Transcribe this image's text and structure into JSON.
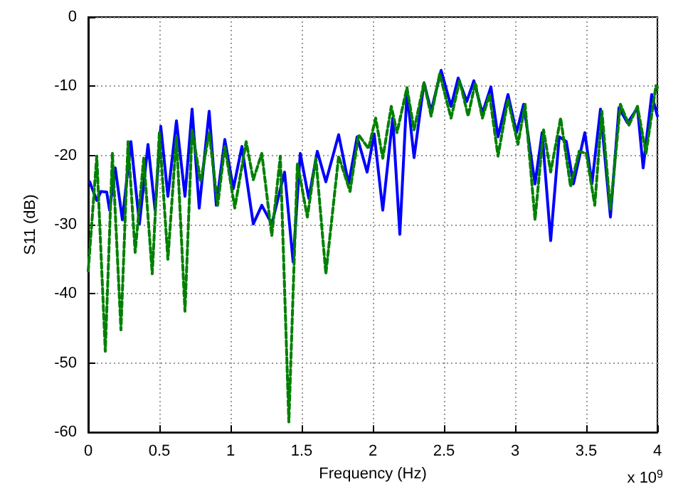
{
  "chart_data": {
    "type": "line",
    "xlabel": "Frequency (Hz)",
    "ylabel": "S11 (dB)",
    "annotations": [
      "x 10$^{9}$"
    ],
    "xlim": [
      0,
      4
    ],
    "xticks": [
      0,
      0.5,
      1,
      1.5,
      2,
      2.5,
      3,
      3.5,
      4
    ],
    "ylim": [
      -60,
      0
    ],
    "yticks": [
      -60,
      -50,
      -40,
      -30,
      -20,
      -10,
      0
    ],
    "grid": true,
    "marker": "none",
    "series": [
      {
        "color": "#0000ff",
        "line_style": "solid",
        "x": [
          0.01,
          0.06,
          0.09,
          0.13,
          0.15,
          0.19,
          0.24,
          0.3,
          0.36,
          0.42,
          0.47,
          0.51,
          0.56,
          0.62,
          0.68,
          0.73,
          0.78,
          0.85,
          0.9,
          0.96,
          1.02,
          1.08,
          1.16,
          1.22,
          1.29,
          1.38,
          1.44,
          1.49,
          1.55,
          1.61,
          1.67,
          1.76,
          1.83,
          1.89,
          1.96,
          2.01,
          2.07,
          2.14,
          2.19,
          2.24,
          2.29,
          2.36,
          2.41,
          2.48,
          2.55,
          2.6,
          2.66,
          2.71,
          2.77,
          2.83,
          2.88,
          2.95,
          3.01,
          3.06,
          3.14,
          3.19,
          3.25,
          3.31,
          3.36,
          3.41,
          3.49,
          3.54,
          3.6,
          3.67,
          3.73,
          3.79,
          3.86,
          3.9,
          3.96,
          4
        ],
        "values": [
          -23.8,
          -26.5,
          -25.2,
          -25.3,
          -27.9,
          -21.8,
          -29.3,
          -18,
          -29.9,
          -18.4,
          -27.9,
          -15.8,
          -25.9,
          -15,
          -25.9,
          -13.3,
          -27.6,
          -13.6,
          -27.2,
          -17.7,
          -24.8,
          -18.7,
          -29.9,
          -27.2,
          -29.9,
          -22.4,
          -35.4,
          -19.7,
          -26.2,
          -19.4,
          -23.8,
          -17,
          -24.1,
          -17.3,
          -22.4,
          -16.9,
          -27.9,
          -14.6,
          -31.4,
          -10.9,
          -20.3,
          -9.5,
          -13.6,
          -7.7,
          -12.9,
          -8.8,
          -12.2,
          -9.2,
          -13.9,
          -10.1,
          -17.3,
          -11.2,
          -16.7,
          -12.6,
          -24.1,
          -16.7,
          -32.3,
          -17.3,
          -18,
          -24.1,
          -16.7,
          -24.1,
          -13.3,
          -28.9,
          -13.1,
          -15.3,
          -13.1,
          -21.8,
          -11.2,
          -14.3
        ]
      },
      {
        "color": "#008000",
        "line_style": "dashed",
        "x": [
          0,
          0.06,
          0.12,
          0.17,
          0.23,
          0.28,
          0.33,
          0.39,
          0.45,
          0.5,
          0.56,
          0.62,
          0.68,
          0.73,
          0.79,
          0.85,
          0.91,
          0.96,
          1.03,
          1.11,
          1.16,
          1.22,
          1.29,
          1.35,
          1.41,
          1.47,
          1.54,
          1.6,
          1.67,
          1.76,
          1.84,
          1.9,
          1.97,
          2.02,
          2.07,
          2.13,
          2.17,
          2.24,
          2.29,
          2.36,
          2.41,
          2.47,
          2.55,
          2.61,
          2.67,
          2.72,
          2.77,
          2.82,
          2.88,
          2.95,
          3.02,
          3.07,
          3.14,
          3.2,
          3.25,
          3.32,
          3.39,
          3.45,
          3.5,
          3.56,
          3.61,
          3.67,
          3.74,
          3.8,
          3.86,
          3.92,
          3.99,
          4
        ],
        "values": [
          -36.7,
          -20.1,
          -48.3,
          -19.7,
          -45.2,
          -18,
          -34,
          -20.4,
          -37.1,
          -16.7,
          -35,
          -17.3,
          -42.5,
          -16.3,
          -23.8,
          -16.7,
          -27.2,
          -18.7,
          -27.6,
          -18,
          -23.5,
          -19.7,
          -31.6,
          -20.1,
          -58.5,
          -21.1,
          -28.9,
          -20.4,
          -37.1,
          -20.1,
          -25.2,
          -17,
          -19,
          -14.6,
          -20.4,
          -12.9,
          -16.7,
          -10.2,
          -16.3,
          -9.5,
          -14.3,
          -8.2,
          -14.6,
          -9.2,
          -14.3,
          -9.5,
          -14.6,
          -11.2,
          -20.1,
          -11.9,
          -18.4,
          -12.6,
          -29.3,
          -16.3,
          -22.4,
          -14.6,
          -24.5,
          -19.4,
          -19.7,
          -27.2,
          -13.6,
          -27.9,
          -12.6,
          -15.6,
          -12.9,
          -19.7,
          -9.9,
          -10.2
        ]
      }
    ]
  }
}
